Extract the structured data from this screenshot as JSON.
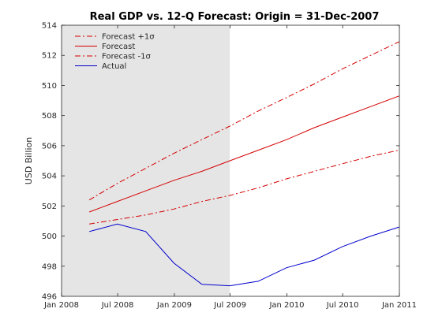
{
  "chart_data": {
    "type": "line",
    "title": "Real GDP vs. 12-Q Forecast: Origin = 31-Dec-2007",
    "xlabel": "",
    "ylabel": "USD Billion",
    "xlim": [
      "2008-01-01",
      "2011-01-01"
    ],
    "ylim": [
      496,
      514
    ],
    "x_ticks": [
      "2008-01-01",
      "2008-07-01",
      "2009-01-01",
      "2009-07-01",
      "2010-01-01",
      "2010-07-01",
      "2011-01-01"
    ],
    "x_tick_labels": [
      "Jan 2008",
      "Jul 2008",
      "Jan 2009",
      "Jul 2009",
      "Jan 2010",
      "Jul 2010",
      "Jan 2011"
    ],
    "y_ticks": [
      496,
      498,
      500,
      502,
      504,
      506,
      508,
      510,
      512,
      514
    ],
    "y_tick_labels": [
      "496",
      "498",
      "500",
      "502",
      "504",
      "506",
      "508",
      "510",
      "512",
      "514"
    ],
    "shaded_region": {
      "x0": "2008-01-01",
      "x1": "2009-06-30",
      "color": "#e5e5e5"
    },
    "grid": false,
    "legend_position": "top-left",
    "series": [
      {
        "name": "Forecast +1σ",
        "color": "#d40000",
        "style": "dashdot",
        "x": [
          "2008-03-31",
          "2008-06-30",
          "2008-09-30",
          "2008-12-31",
          "2009-03-31",
          "2009-06-30",
          "2009-09-30",
          "2009-12-31",
          "2010-03-31",
          "2010-06-30",
          "2010-09-30",
          "2010-12-31"
        ],
        "values": [
          502.4,
          503.5,
          504.5,
          505.5,
          506.4,
          507.3,
          508.3,
          509.2,
          510.1,
          511.1,
          512.0,
          512.9
        ]
      },
      {
        "name": "Forecast",
        "color": "#d40000",
        "style": "solid",
        "x": [
          "2008-03-31",
          "2008-06-30",
          "2008-09-30",
          "2008-12-31",
          "2009-03-31",
          "2009-06-30",
          "2009-09-30",
          "2009-12-31",
          "2010-03-31",
          "2010-06-30",
          "2010-09-30",
          "2010-12-31"
        ],
        "values": [
          501.6,
          502.3,
          503.0,
          503.7,
          504.3,
          505.0,
          505.7,
          506.4,
          507.2,
          507.9,
          508.6,
          509.3
        ]
      },
      {
        "name": "Forecast -1σ",
        "color": "#d40000",
        "style": "dashdot",
        "x": [
          "2008-03-31",
          "2008-06-30",
          "2008-09-30",
          "2008-12-31",
          "2009-03-31",
          "2009-06-30",
          "2009-09-30",
          "2009-12-31",
          "2010-03-31",
          "2010-06-30",
          "2010-09-30",
          "2010-12-31"
        ],
        "values": [
          500.8,
          501.1,
          501.4,
          501.8,
          502.3,
          502.7,
          503.2,
          503.8,
          504.3,
          504.8,
          505.3,
          505.7
        ]
      },
      {
        "name": "Actual",
        "color": "#0000cc",
        "style": "solid",
        "x": [
          "2008-03-31",
          "2008-06-30",
          "2008-09-30",
          "2008-12-31",
          "2009-03-31",
          "2009-06-30",
          "2009-09-30",
          "2009-12-31",
          "2010-03-31",
          "2010-06-30",
          "2010-09-30",
          "2010-12-31"
        ],
        "values": [
          500.3,
          500.8,
          500.3,
          498.2,
          496.8,
          496.7,
          497.0,
          497.9,
          498.4,
          499.3,
          500.0,
          500.6
        ]
      }
    ]
  }
}
